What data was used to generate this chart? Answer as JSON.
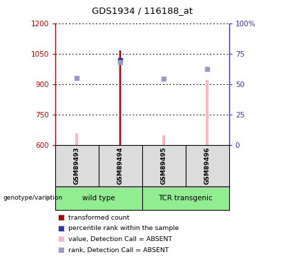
{
  "title": "GDS1934 / 116188_at",
  "samples": [
    "GSM89493",
    "GSM89494",
    "GSM89495",
    "GSM89496"
  ],
  "ylim_left": [
    600,
    1200
  ],
  "ylim_right": [
    0,
    100
  ],
  "yticks_left": [
    600,
    750,
    900,
    1050,
    1200
  ],
  "yticks_right": [
    0,
    25,
    50,
    75,
    100
  ],
  "yticklabels_right": [
    "0",
    "25",
    "50",
    "75",
    "100%"
  ],
  "transformed_count_bars": {
    "GSM89494": {
      "value": 1068,
      "color": "#AA0000",
      "base": 600
    }
  },
  "percentile_rank_dots": {
    "GSM89494": {
      "value": 1020,
      "color": "#3333AA"
    }
  },
  "absent_value_bars": {
    "GSM89493": {
      "value": 658,
      "color": "#FFB6C1",
      "base": 600
    },
    "GSM89494": {
      "value": 1068,
      "color": "#FFB6C1",
      "base": 600
    },
    "GSM89495": {
      "value": 648,
      "color": "#FFB6C1",
      "base": 600
    },
    "GSM89496": {
      "value": 920,
      "color": "#FFB6C1",
      "base": 600
    }
  },
  "absent_rank_dots": {
    "GSM89493": {
      "value": 930,
      "color": "#9999CC"
    },
    "GSM89494": {
      "value": 1010,
      "color": "#9999CC"
    },
    "GSM89495": {
      "value": 928,
      "color": "#9999CC"
    },
    "GSM89496": {
      "value": 975,
      "color": "#9999CC"
    }
  },
  "left_axis_color": "#CC0000",
  "right_axis_color": "#3333BB",
  "grid_color": "#000000",
  "group_wt": "wild type",
  "group_tcr": "TCR transgenic",
  "group_color": "#90EE90",
  "group_label": "genotype/variation",
  "legend_items": [
    {
      "label": "transformed count",
      "color": "#AA0000"
    },
    {
      "label": "percentile rank within the sample",
      "color": "#3333AA"
    },
    {
      "label": "value, Detection Call = ABSENT",
      "color": "#FFB6C1"
    },
    {
      "label": "rank, Detection Call = ABSENT",
      "color": "#9999CC"
    }
  ],
  "bg_color": "#DCDCDC",
  "plot_bg": "#FFFFFF",
  "bar_width": 0.06
}
